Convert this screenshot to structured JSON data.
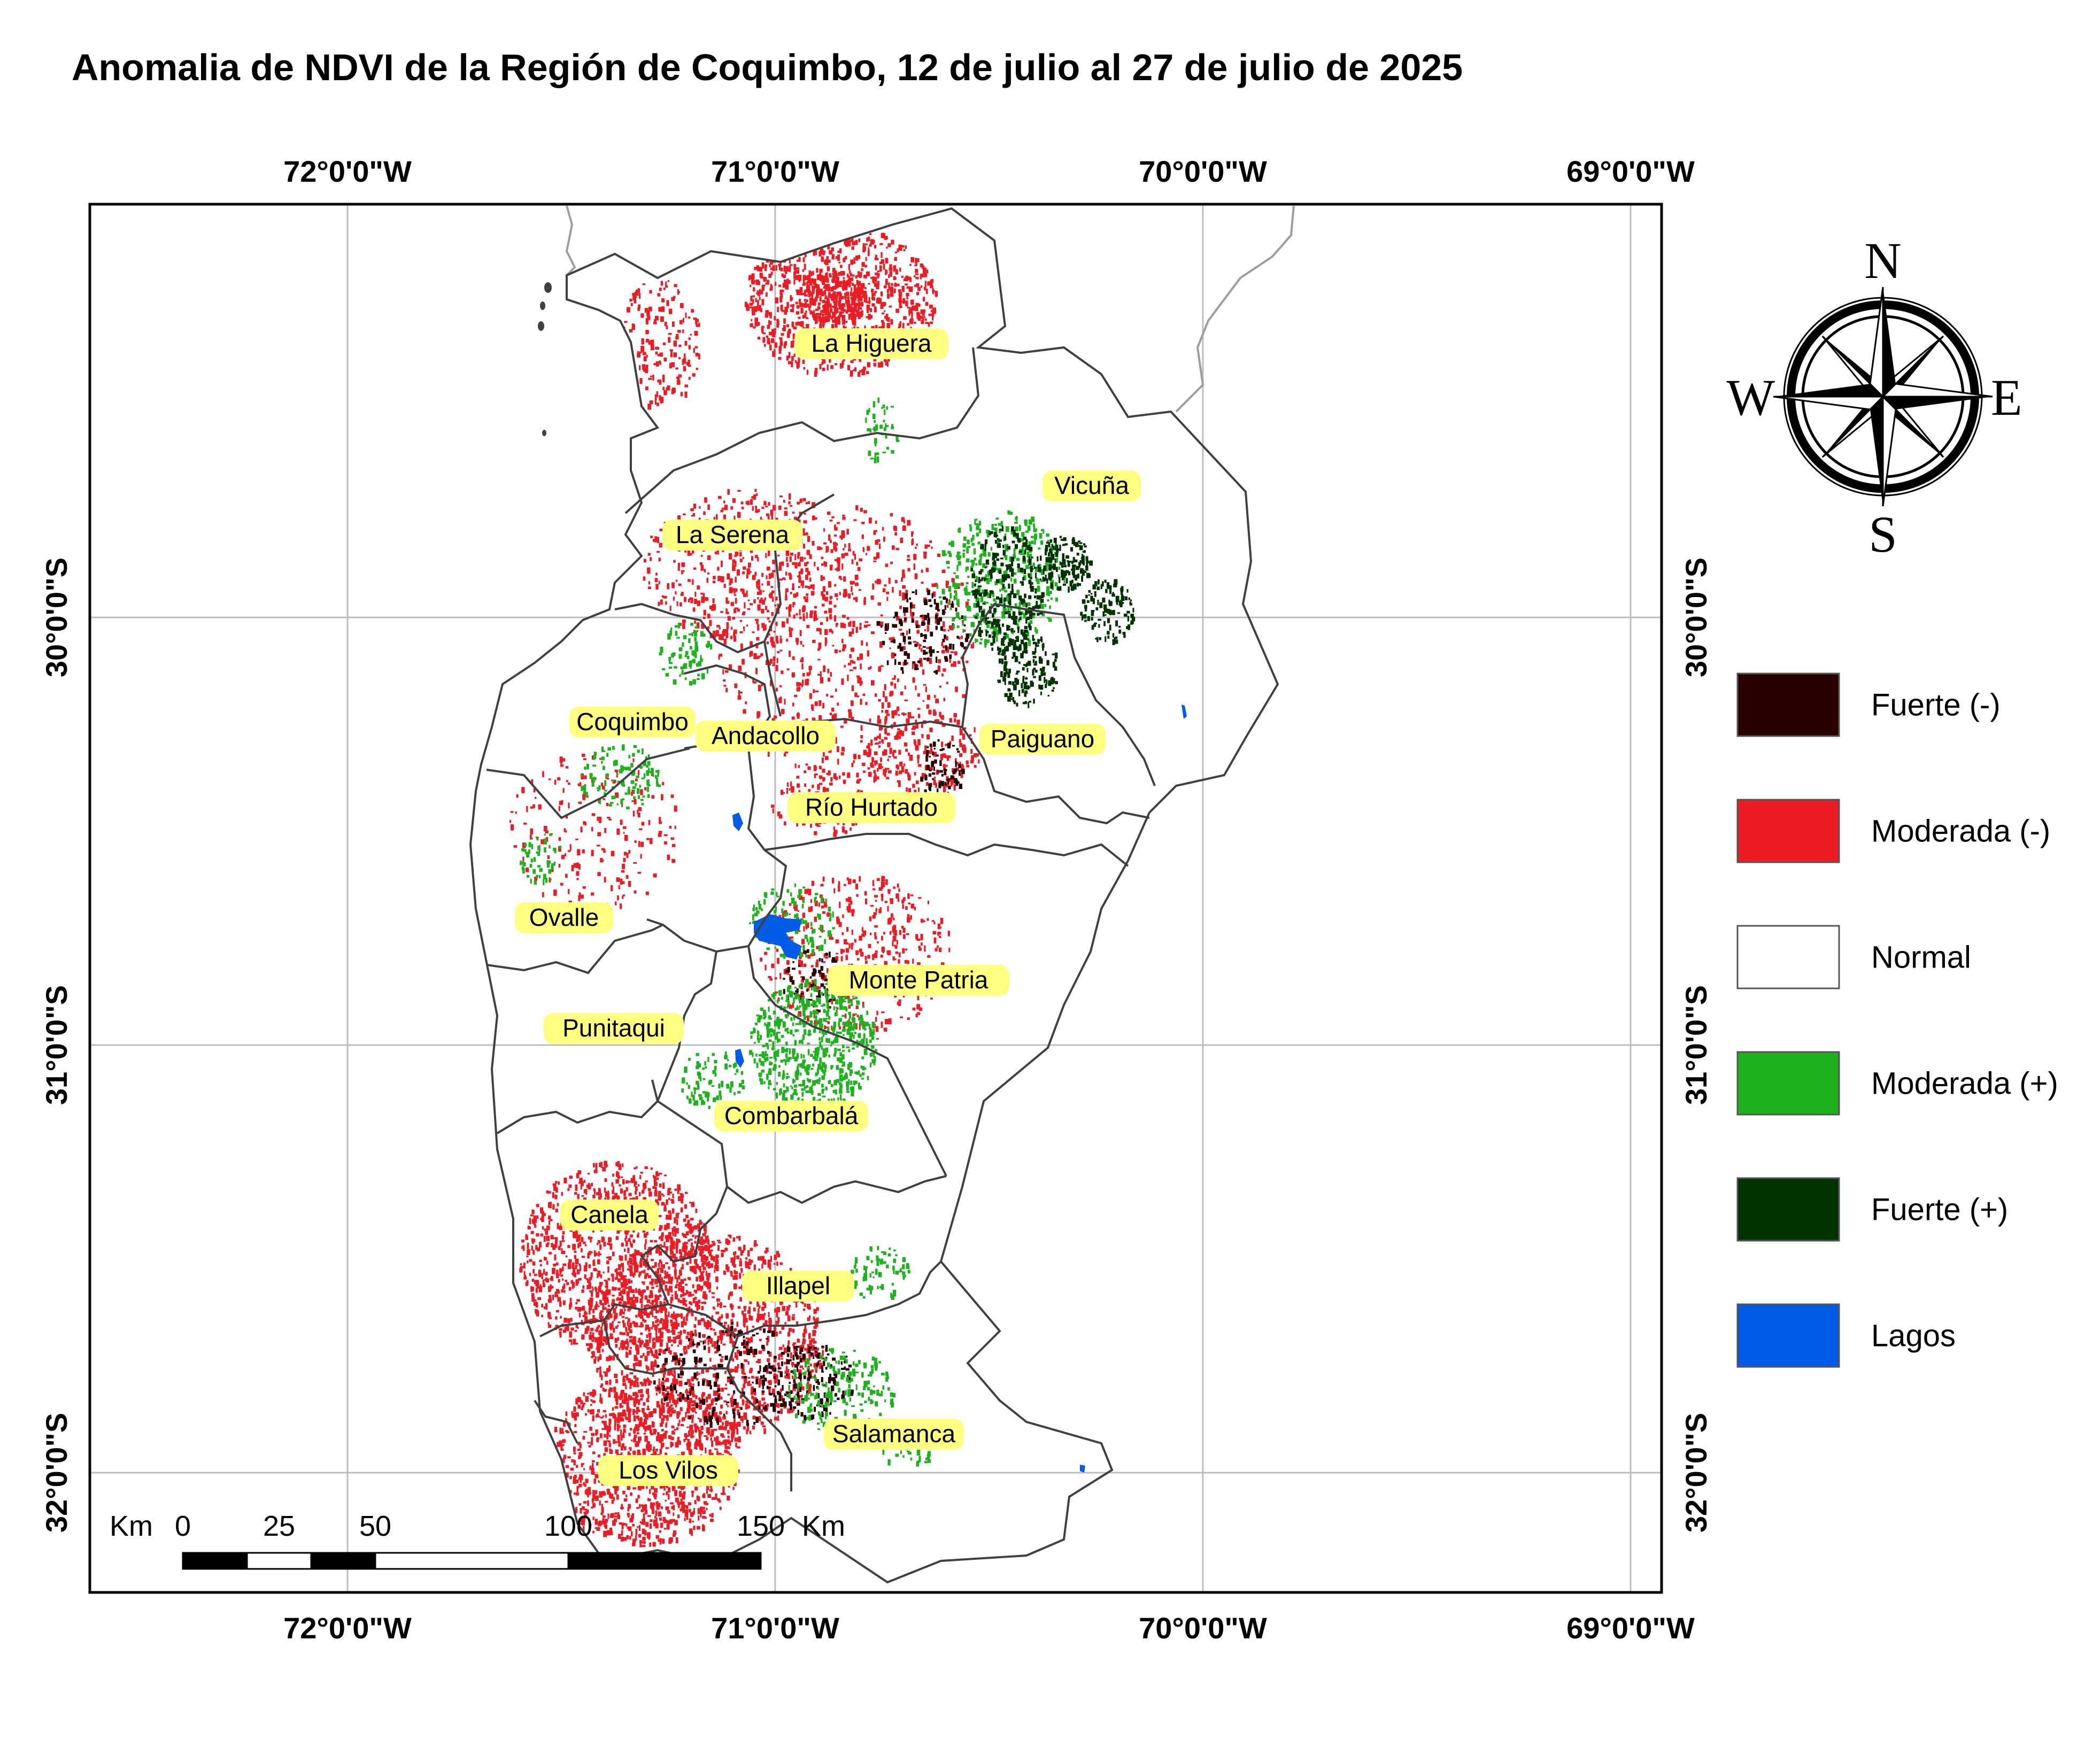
{
  "title": "Anomalia de NDVI de la Región de Coquimbo, 12 de julio al 27 de julio de 2025",
  "longitude_labels": [
    "72°0'0\"W",
    "71°0'0\"W",
    "70°0'0\"W",
    "69°0'0\"W"
  ],
  "latitude_labels": [
    "30°0'0\"S",
    "31°0'0\"S",
    "32°0'0\"S"
  ],
  "communes": [
    "La Higuera",
    "Vicuña",
    "La Serena",
    "Coquimbo",
    "Andacollo",
    "Paiguano",
    "Río Hurtado",
    "Ovalle",
    "Monte Patria",
    "Punitaqui",
    "Combarbalá",
    "Canela",
    "Illapel",
    "Salamanca",
    "Los Vilos"
  ],
  "compass": {
    "north": "N",
    "south": "S",
    "east": "E",
    "west": "W"
  },
  "scale_bar": {
    "unit_left": "Km",
    "unit_right": "Km",
    "ticks": [
      "0",
      "25",
      "50",
      "100",
      "150"
    ]
  },
  "legend": [
    {
      "label": "Fuerte (-)",
      "color": "#2a0000"
    },
    {
      "label": "Moderada (-)",
      "color": "#ed1c24"
    },
    {
      "label": "Normal",
      "color": "#ffffff"
    },
    {
      "label": "Moderada (+)",
      "color": "#1eb21e"
    },
    {
      "label": "Fuerte (+)",
      "color": "#003300"
    },
    {
      "label": "Lagos",
      "color": "#005ce6"
    }
  ],
  "colors": {
    "label_highlight": "#ffff80",
    "boundary": "#404040",
    "graticule": "#bdbdbd",
    "international_border": "#9e9e9e"
  }
}
